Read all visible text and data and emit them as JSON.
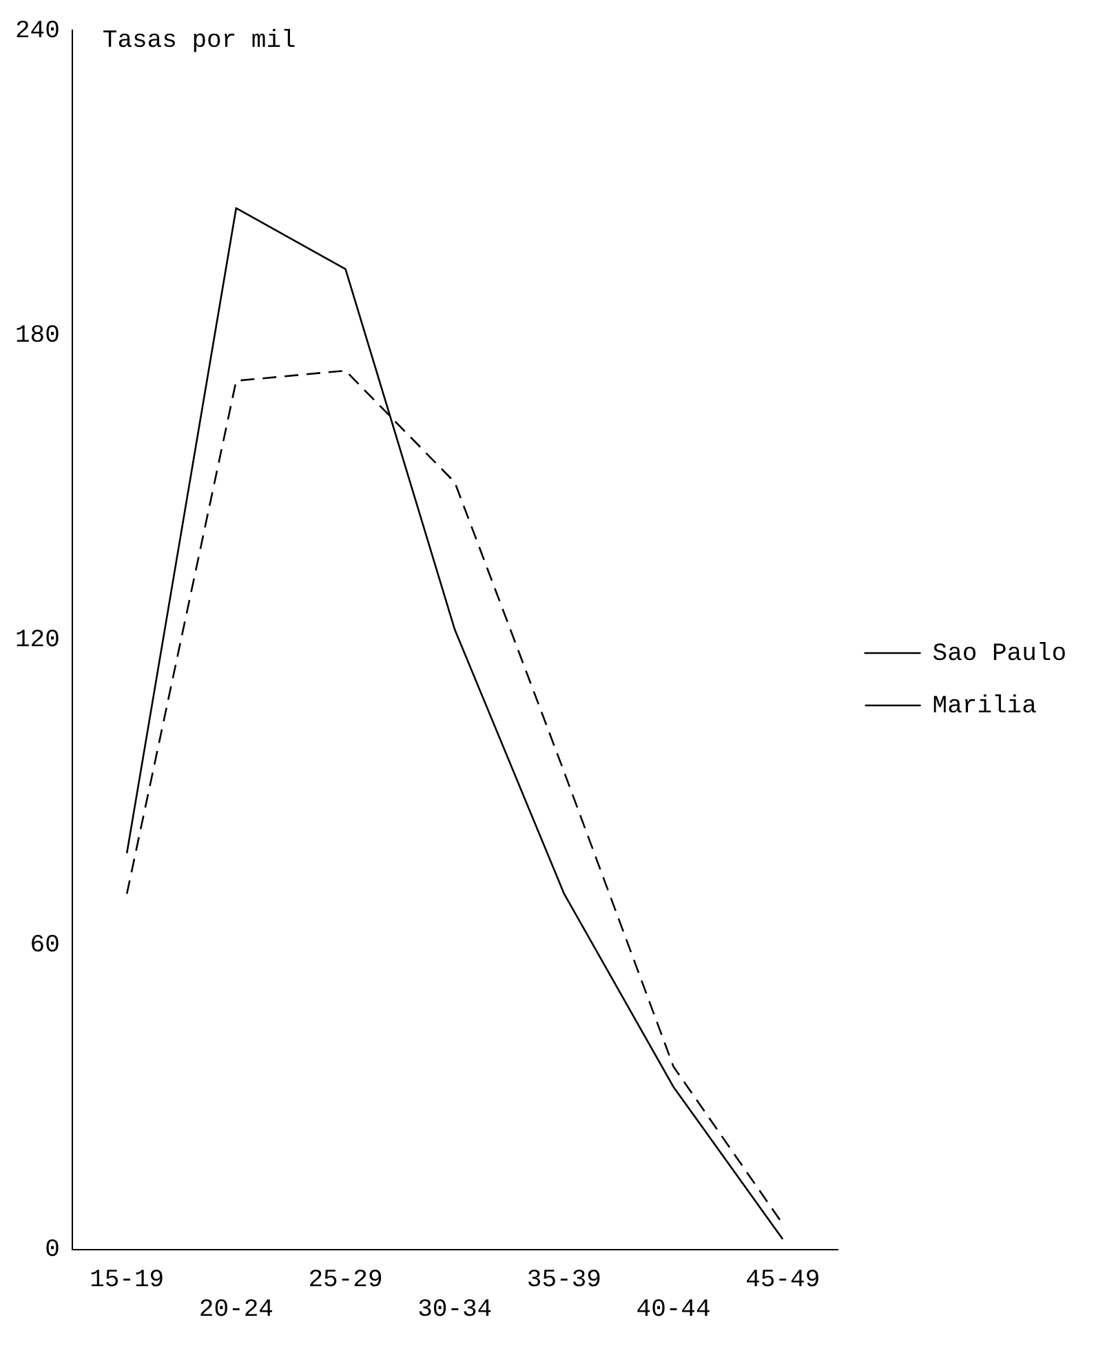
{
  "chart_data": {
    "type": "line",
    "ylabel": "Tasas por mil",
    "categories": [
      "15-19",
      "20-24",
      "25-29",
      "30-34",
      "35-39",
      "40-44",
      "45-49"
    ],
    "series": [
      {
        "name": "Sao Paulo",
        "color": "#000000",
        "line_style": "solid",
        "values": [
          78,
          205,
          193,
          122,
          70,
          32,
          2
        ]
      },
      {
        "name": "Marilia",
        "color": "#000000",
        "line_style": "dashed",
        "values": [
          70,
          171,
          173,
          151,
          94,
          36,
          5
        ]
      }
    ],
    "ylim": [
      0,
      240
    ],
    "yticks": [
      0,
      60,
      120,
      180,
      240
    ],
    "grid": false,
    "legend": "right",
    "marker": "none"
  }
}
